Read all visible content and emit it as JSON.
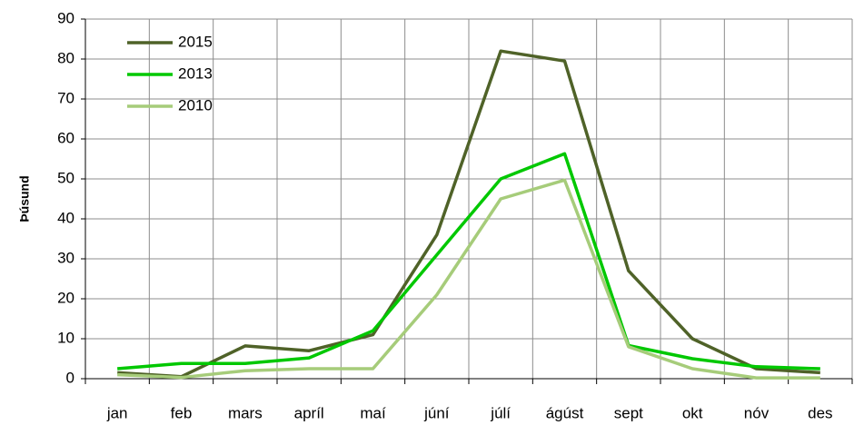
{
  "chart_data": {
    "type": "line",
    "y_label": "Þúsund",
    "categories": [
      "jan",
      "feb",
      "mars",
      "apríl",
      "maí",
      "júní",
      "júlí",
      "ágúst",
      "sept",
      "okt",
      "nóv",
      "des"
    ],
    "series": [
      {
        "name": "2015",
        "color": "#4f6228",
        "values": [
          1.5,
          0.5,
          8.2,
          7,
          11,
          36,
          82,
          79.5,
          27,
          10,
          2.5,
          1.5
        ]
      },
      {
        "name": "2013",
        "color": "#00c800",
        "values": [
          2.5,
          3.8,
          3.8,
          5.2,
          12,
          31,
          50,
          56.3,
          8.3,
          5,
          3,
          2.5
        ]
      },
      {
        "name": "2010",
        "color": "#a6cc7a",
        "values": [
          1,
          0.3,
          2,
          2.5,
          2.5,
          21,
          45,
          49.7,
          8,
          2.5,
          0.2,
          0.2
        ]
      }
    ],
    "ylim": [
      0,
      90
    ],
    "yticks": [
      0,
      10,
      20,
      30,
      40,
      50,
      60,
      70,
      80,
      90
    ],
    "grid": true
  }
}
